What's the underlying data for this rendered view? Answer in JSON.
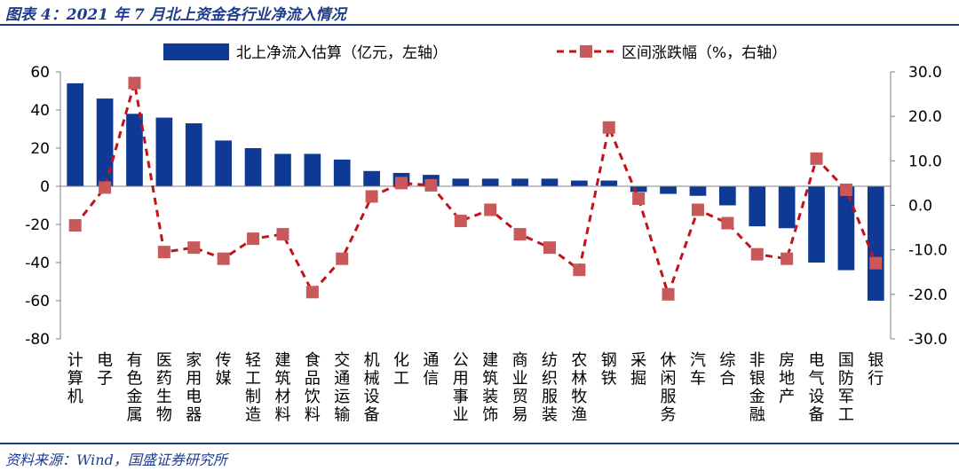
{
  "figure": {
    "title": "图表 4：2021 年 7 月北上资金各行业净流入情况",
    "source": "资料来源：Wind，国盛证券研究所"
  },
  "chart_data": {
    "type": "bar",
    "categories": [
      "计算机",
      "电子",
      "有色金属",
      "医药生物",
      "家用电器",
      "传媒",
      "轻工制造",
      "建筑材料",
      "食品饮料",
      "交通运输",
      "机械设备",
      "化工",
      "通信",
      "公用事业",
      "建筑装饰",
      "商业贸易",
      "纺织服装",
      "农林牧渔",
      "钢铁",
      "采掘",
      "休闲服务",
      "汽车",
      "综合",
      "非银金融",
      "房地产",
      "电气设备",
      "国防军工",
      "银行"
    ],
    "series": [
      {
        "name": "北上净流入估算（亿元，左轴）",
        "type": "bar",
        "axis": "left",
        "values": [
          54,
          46,
          38,
          36,
          33,
          24,
          20,
          17,
          17,
          14,
          8,
          7,
          6,
          4,
          4,
          4,
          4,
          3,
          3,
          -3,
          -4,
          -5,
          -10,
          -21,
          -22,
          -40,
          -44,
          -60
        ]
      },
      {
        "name": "区间涨跌幅（%，右轴）",
        "type": "line",
        "axis": "right",
        "values": [
          -4.5,
          4.0,
          27.5,
          -10.5,
          -9.5,
          -12.0,
          -7.5,
          -6.5,
          -19.5,
          -12.0,
          2.0,
          5.0,
          4.5,
          -3.5,
          -1.0,
          -6.5,
          -9.5,
          -14.5,
          17.5,
          1.5,
          -20.0,
          -1.0,
          -4.0,
          -11.0,
          -12.0,
          10.5,
          3.5,
          -13.0
        ]
      }
    ],
    "left_axis": {
      "min": -80,
      "max": 60,
      "ticks": [
        "60",
        "40",
        "20",
        "0",
        "-20",
        "-40",
        "-60",
        "-80"
      ]
    },
    "right_axis": {
      "min": -30,
      "max": 30,
      "ticks": [
        "30.0",
        "20.0",
        "10.0",
        "0.0",
        "-10.0",
        "-20.0",
        "-30.0"
      ]
    },
    "legend": {
      "position": "top",
      "bar_label": "北上净流入估算（亿元，左轴）",
      "line_label": "区间涨跌幅（%，右轴）"
    },
    "grid": false,
    "colors": {
      "bar": "#0e3a96",
      "line": "#c0141a",
      "marker": "#c8585a",
      "axis": "#808080"
    }
  }
}
